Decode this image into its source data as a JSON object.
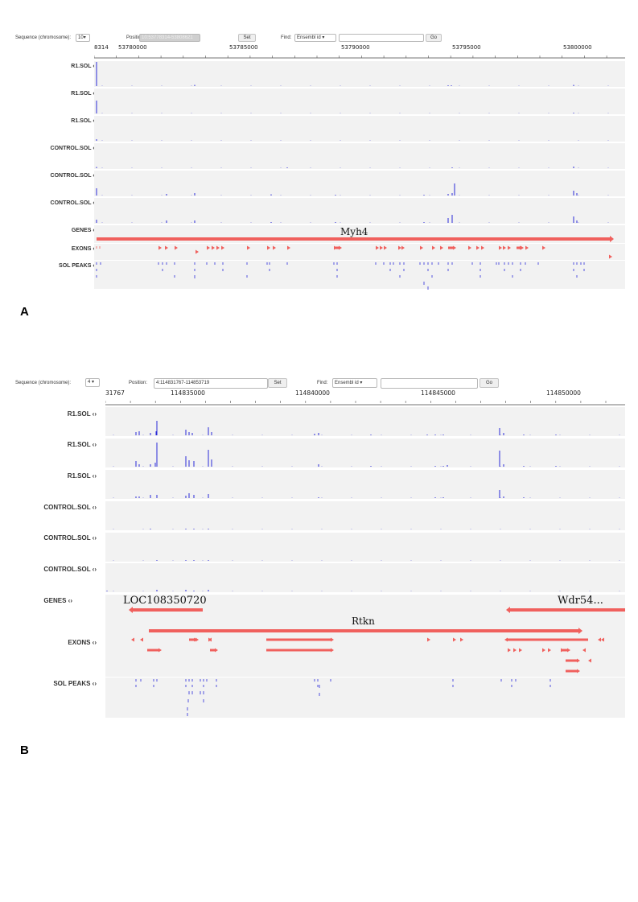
{
  "panels": [
    {
      "letter": "A",
      "toolbar": {
        "sequence_label": "Sequence (chromosome):",
        "sequence_value": "10",
        "position_label": "Position:",
        "position_value": "10:53778314-53808621",
        "set_label": "Set",
        "find_label": "Find:",
        "find_select": "Ensembl id",
        "find_value": "",
        "go_label": "Go"
      },
      "ruler": {
        "start_label": "8314",
        "ticks": [
          "53780000",
          "53785000",
          "53790000",
          "53795000",
          "53800000"
        ]
      },
      "tracks": [
        {
          "label": "R1.SOL"
        },
        {
          "label": "R1.SOL"
        },
        {
          "label": "R1.SOL"
        },
        {
          "label": "CONTROL.SOL"
        },
        {
          "label": "CONTROL.SOL"
        },
        {
          "label": "CONTROL.SOL"
        },
        {
          "label": "GENES"
        },
        {
          "label": "EXONS"
        },
        {
          "label": "SOL PEAKS"
        }
      ],
      "genes": [
        {
          "name": "Myh4"
        }
      ]
    },
    {
      "letter": "B",
      "toolbar": {
        "sequence_label": "Sequence (chromosome):",
        "sequence_value": "4",
        "position_label": "Position:",
        "position_value": "4:114831767-114853719",
        "set_label": "Set",
        "find_label": "Find:",
        "find_select": "Ensembl id",
        "find_value": "",
        "go_label": "Go"
      },
      "ruler": {
        "start_label": "31767",
        "ticks": [
          "114835000",
          "114840000",
          "114845000",
          "114850000"
        ]
      },
      "tracks": [
        {
          "label": "R1.SOL"
        },
        {
          "label": "R1.SOL"
        },
        {
          "label": "R1.SOL"
        },
        {
          "label": "CONTROL.SOL"
        },
        {
          "label": "CONTROL.SOL"
        },
        {
          "label": "CONTROL.SOL"
        },
        {
          "label": "GENES"
        },
        {
          "label": "EXONS"
        },
        {
          "label": "SOL PEAKS"
        }
      ],
      "genes": [
        {
          "name": "LOC108350720"
        },
        {
          "name": "Rtkn"
        },
        {
          "name": "Wdr54..."
        }
      ]
    }
  ],
  "colors": {
    "feature": "#f0605d",
    "signal": "#2a2ad8",
    "track_bg": "#f2f2f2"
  },
  "icons": {
    "track_handle": "left-right-arrows-icon",
    "dropdown": "chevron-down-icon"
  }
}
